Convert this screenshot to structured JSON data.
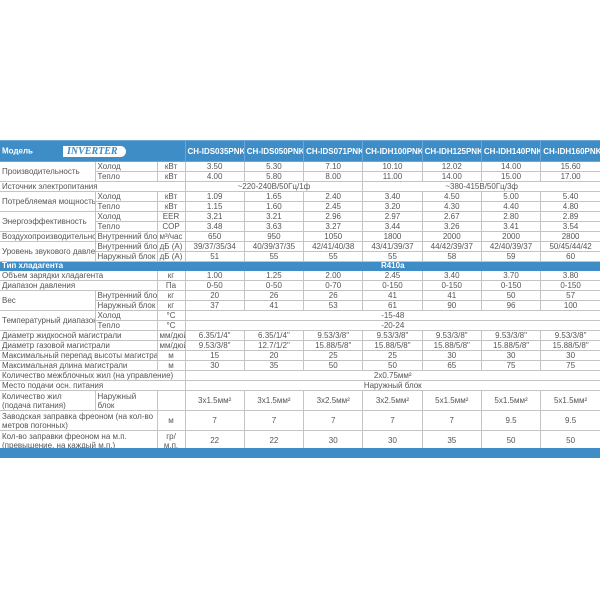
{
  "header": {
    "label": "Модель",
    "logo": "INVERTER",
    "models": [
      "CH-IDS035PNK/ CH-IU035NK",
      "CH-IDS050PNK/ CH-IU050NK",
      "CH-IDS071PNK/ CH-IU071NK",
      "CH-IDH100PNK/ CH-IU100NK",
      "CH-IDH125PNK/ CH-IU125NM",
      "CH-IDH140PNK/ CH-IU140NM",
      "CH-IDH160PNK/ CH-IU160NM"
    ]
  },
  "colors": {
    "accent": "#3f8dc6",
    "grid": "#c4c4c4",
    "text": "#555555"
  },
  "groups": [
    {
      "label": "Производительность",
      "rows": [
        {
          "sub": "Холод",
          "unit": "кВт",
          "values": [
            "3.50",
            "5.30",
            "7.10",
            "10.10",
            "12.02",
            "14.00",
            "15.60"
          ]
        },
        {
          "sub": "Тепло",
          "unit": "кВт",
          "values": [
            "4.00",
            "5.80",
            "8.00",
            "11.00",
            "14.00",
            "15.00",
            "17.00"
          ]
        }
      ]
    },
    {
      "label": "Источник электропитания",
      "span": 3,
      "rows": [
        {
          "spans": [
            {
              "text": "~220-240В/50Гц/1ф",
              "cols": 3
            },
            {
              "text": "~380-415В/50Гц/3ф",
              "cols": 4
            }
          ]
        }
      ]
    },
    {
      "label": "Потребляемая мощность",
      "rows": [
        {
          "sub": "Холод",
          "unit": "кВт",
          "values": [
            "1.09",
            "1.65",
            "2.40",
            "3.40",
            "4.50",
            "5.00",
            "5.40"
          ]
        },
        {
          "sub": "Тепло",
          "unit": "кВт",
          "values": [
            "1.15",
            "1.60",
            "2.45",
            "3.20",
            "4.30",
            "4.40",
            "4.80"
          ]
        }
      ]
    },
    {
      "label": "Энергоэффективность",
      "rows": [
        {
          "sub": "Холод",
          "unit": "EER",
          "values": [
            "3.21",
            "3.21",
            "2.96",
            "2.97",
            "2.67",
            "2.80",
            "2.89"
          ]
        },
        {
          "sub": "Тепло",
          "unit": "COP",
          "values": [
            "3.48",
            "3.63",
            "3.27",
            "3.44",
            "3.26",
            "3.41",
            "3.54"
          ]
        }
      ]
    },
    {
      "label": "Воздухопроизводительность",
      "rows": [
        {
          "sub": "Внутренний блок",
          "unit": "м³/час",
          "values": [
            "650",
            "950",
            "1050",
            "1800",
            "2000",
            "2000",
            "2800"
          ]
        }
      ]
    },
    {
      "label": "Уровень звукового давления",
      "rows": [
        {
          "sub": "Внутренний блок",
          "unit": "дБ (А)",
          "values": [
            "39/37/35/34",
            "40/39/37/35",
            "42/41/40/38",
            "43/41/39/37",
            "44/42/39/37",
            "42/40/39/37",
            "50/45/44/42"
          ]
        },
        {
          "sub": "Наружный блок",
          "unit": "дБ (А)",
          "values": [
            "51",
            "55",
            "55",
            "55",
            "58",
            "59",
            "60"
          ]
        }
      ]
    },
    {
      "label": "Тип хладагента",
      "span": 3,
      "bar": true,
      "rows": [
        {
          "spans": [
            {
              "text": "R410a",
              "cols": 7
            }
          ]
        }
      ]
    },
    {
      "label": "Объем зарядки хладагента",
      "span": 2,
      "rows": [
        {
          "unit": "кг",
          "values": [
            "1.00",
            "1.25",
            "2.00",
            "2.45",
            "3.40",
            "3.70",
            "3.80"
          ]
        }
      ]
    },
    {
      "label": "Диапазон давления",
      "span": 2,
      "rows": [
        {
          "unit": "Па",
          "values": [
            "0-50",
            "0-50",
            "0-70",
            "0-150",
            "0-150",
            "0-150",
            "0-150"
          ]
        }
      ]
    },
    {
      "label": "Вес",
      "rows": [
        {
          "sub": "Внутренний блок",
          "unit": "кг",
          "values": [
            "20",
            "26",
            "26",
            "41",
            "41",
            "50",
            "57"
          ]
        },
        {
          "sub": "Наружный блок",
          "unit": "кг",
          "values": [
            "37",
            "41",
            "53",
            "61",
            "90",
            "96",
            "100"
          ]
        }
      ]
    },
    {
      "label": "Температурный диапазон работы",
      "rows": [
        {
          "sub": "Холод",
          "unit": "°С",
          "spans": [
            {
              "text": "-15-48",
              "cols": 7
            }
          ]
        },
        {
          "sub": "Тепло",
          "unit": "°С",
          "spans": [
            {
              "text": "-20-24",
              "cols": 7
            }
          ]
        }
      ]
    },
    {
      "label": "Диаметр жидкосной магистрали",
      "span": 2,
      "rows": [
        {
          "unit": "мм/дюйм",
          "values": [
            "6.35/1/4\"",
            "6.35/1/4\"",
            "9.53/3/8\"",
            "9.53/3/8\"",
            "9.53/3/8\"",
            "9.53/3/8\"",
            "9.53/3/8\""
          ]
        }
      ]
    },
    {
      "label": "Диаметр газовой магистрали",
      "span": 2,
      "rows": [
        {
          "unit": "мм/дюйм",
          "values": [
            "9.53/3/8\"",
            "12.7/1/2\"",
            "15.88/5/8\"",
            "15.88/5/8\"",
            "15.88/5/8\"",
            "15.88/5/8\"",
            "15.88/5/8\""
          ]
        }
      ]
    },
    {
      "label": "Максимальный перепад высоты магистрали",
      "span": 2,
      "rows": [
        {
          "unit": "м",
          "values": [
            "15",
            "20",
            "25",
            "25",
            "30",
            "30",
            "30"
          ]
        }
      ]
    },
    {
      "label": "Максимальная длина магистрали",
      "span": 2,
      "rows": [
        {
          "unit": "м",
          "values": [
            "30",
            "35",
            "50",
            "50",
            "65",
            "75",
            "75"
          ]
        }
      ]
    },
    {
      "label": "Количество межблочных жил (на управление)",
      "span": 3,
      "rows": [
        {
          "spans": [
            {
              "text": "2x0.75мм²",
              "cols": 7
            }
          ]
        }
      ]
    },
    {
      "label": "Место подачи осн. питания",
      "span": 3,
      "rows": [
        {
          "spans": [
            {
              "text": "Наружный блок",
              "cols": 7
            }
          ]
        }
      ]
    },
    {
      "label": "Количество жил (подача питания)",
      "tall": true,
      "rows": [
        {
          "sub": "Наружный блок",
          "unit": "",
          "values": [
            "3x1.5мм²",
            "3x1.5мм²",
            "3x2.5мм²",
            "3x2.5мм²",
            "5x1.5мм²",
            "5x1.5мм²",
            "5x1.5мм²"
          ]
        }
      ]
    },
    {
      "label": "Заводская заправка фреоном (на кол-во метров погонных)",
      "span": 2,
      "tall": true,
      "rows": [
        {
          "unit": "м",
          "values": [
            "7",
            "7",
            "7",
            "7",
            "7",
            "9.5",
            "9.5"
          ]
        }
      ]
    },
    {
      "label": "Кол-во заправки фреоном на м.п. (превышение, на каждый м.п.)",
      "span": 2,
      "tall": true,
      "rows": [
        {
          "unit": "гр/м.п.",
          "values": [
            "22",
            "22",
            "30",
            "30",
            "35",
            "50",
            "50"
          ]
        }
      ]
    }
  ]
}
